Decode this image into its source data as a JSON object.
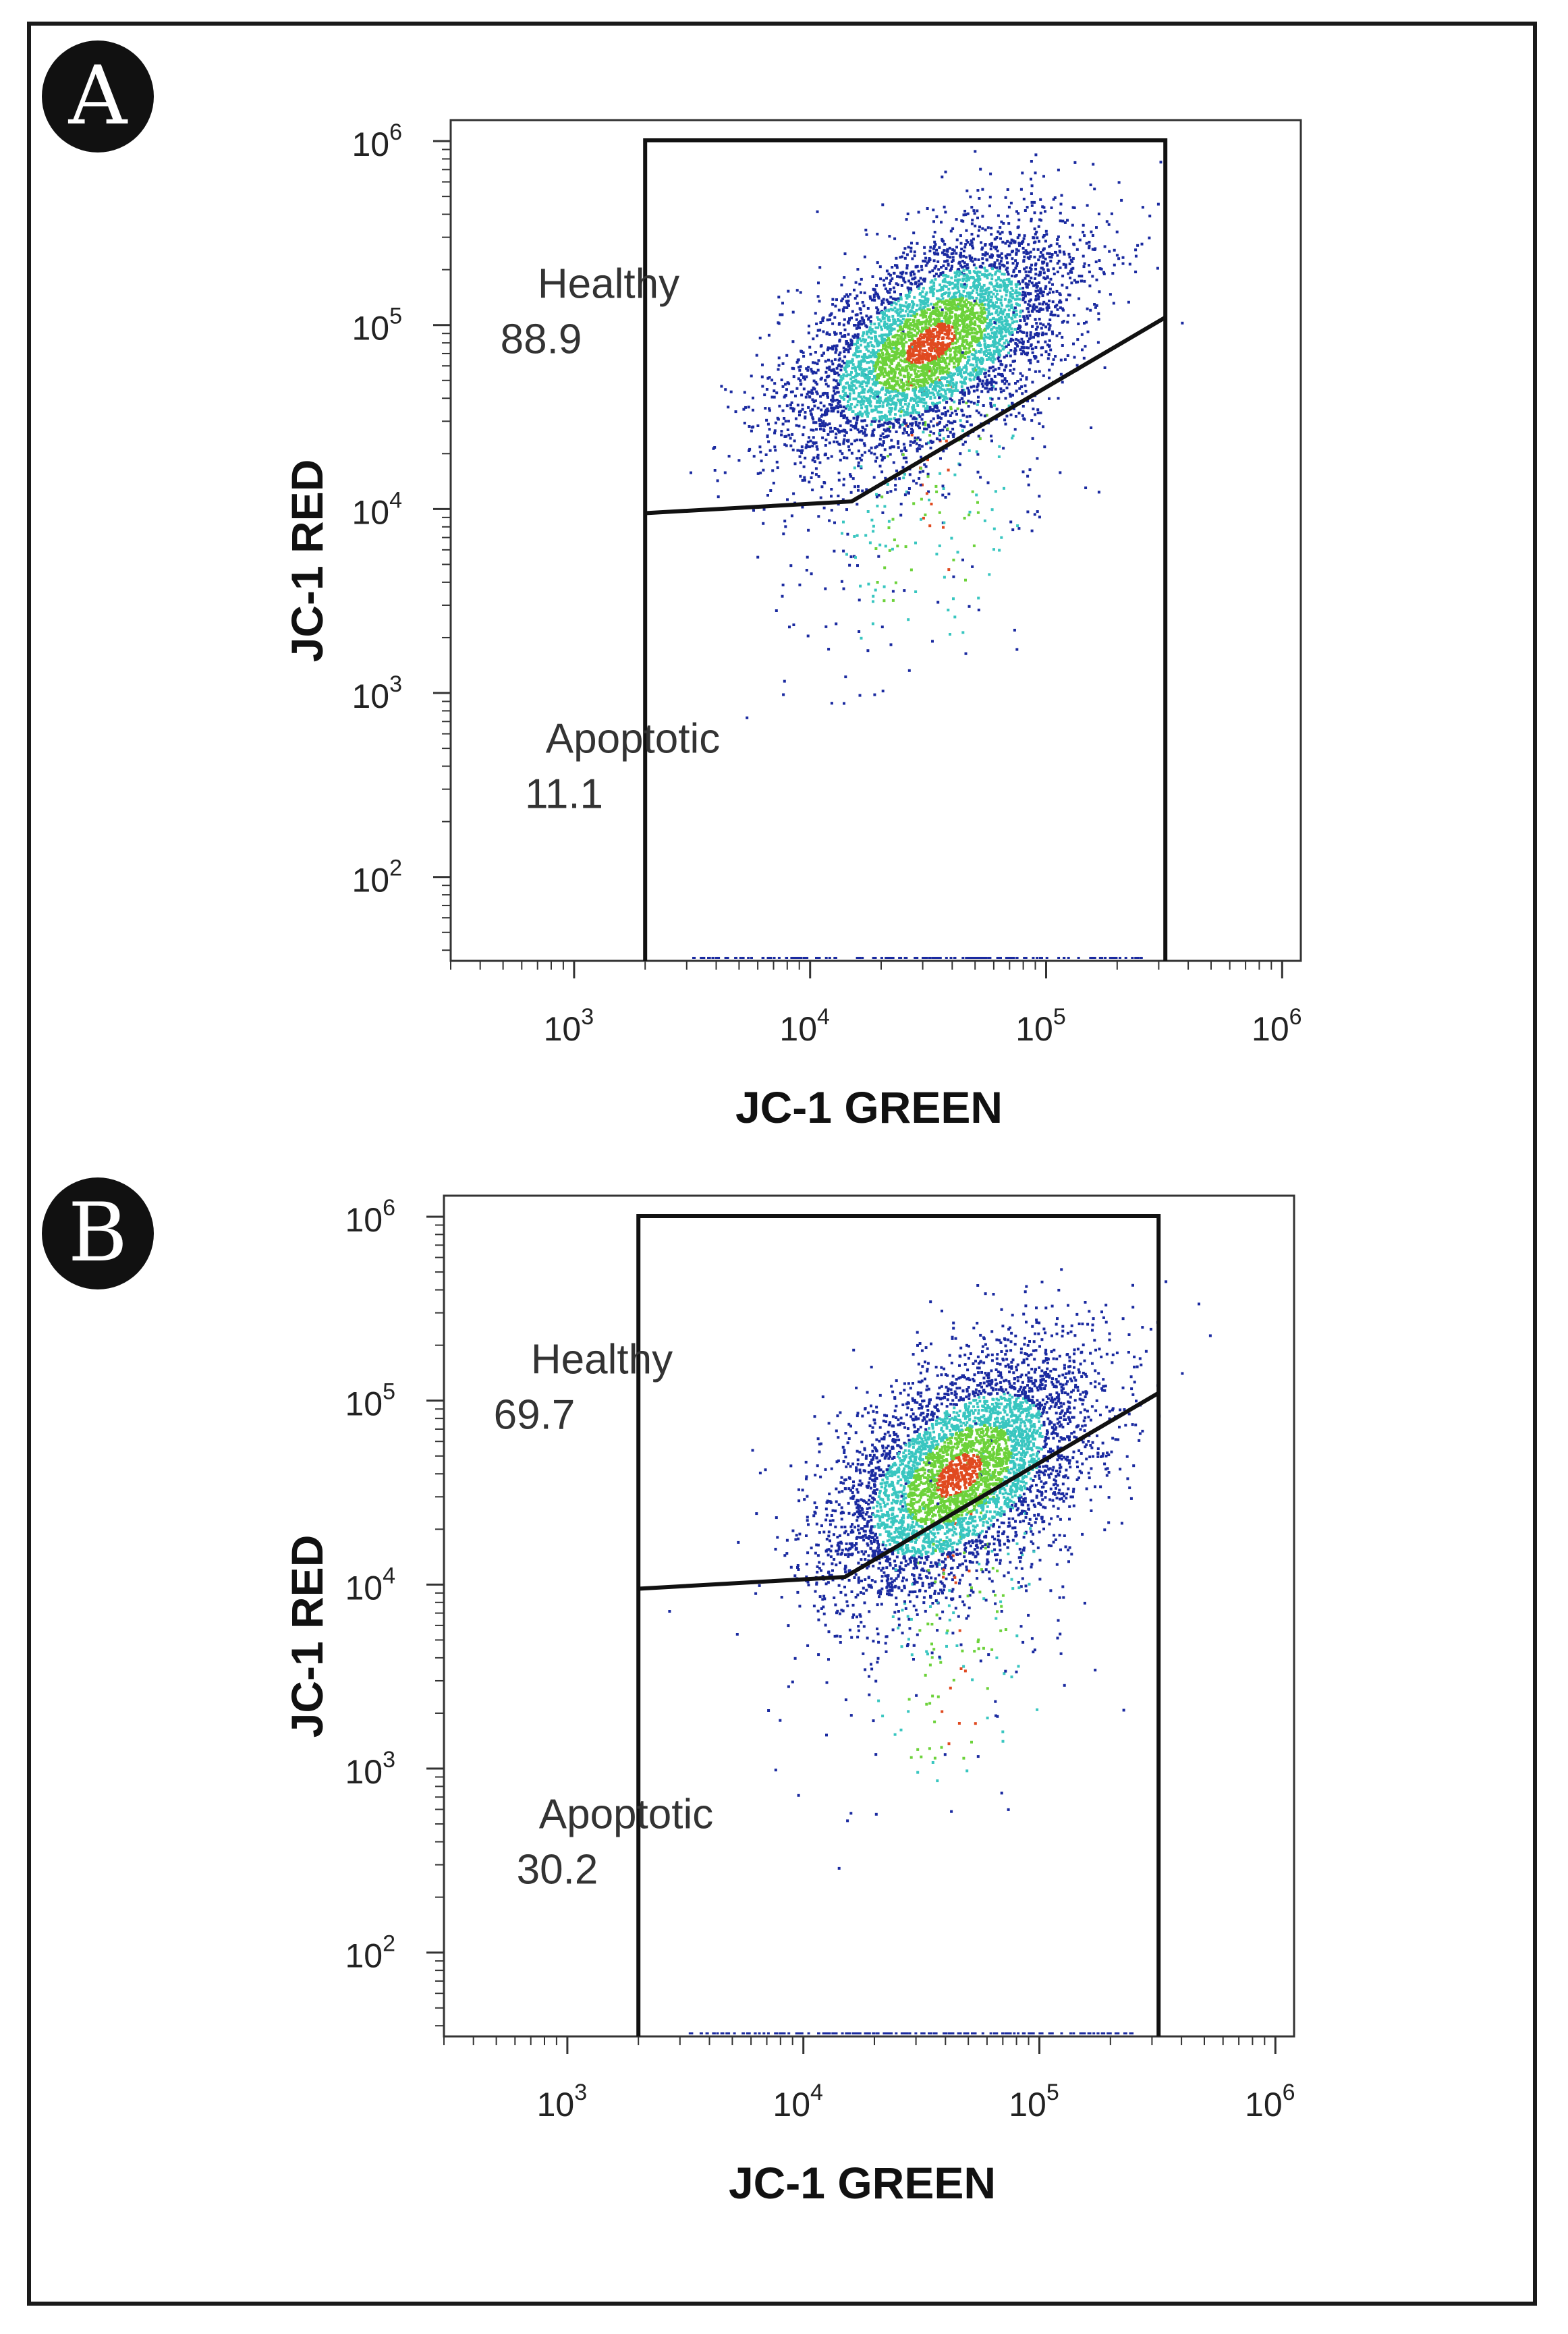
{
  "chart_data": [
    {
      "type": "scatter",
      "panel_label": "A",
      "title": "",
      "xlabel": "JC-1 GREEN",
      "ylabel": "JC-1 RED",
      "xscale": "log",
      "yscale": "log",
      "xlim": [
        300,
        1200000
      ],
      "ylim": [
        35,
        1300000
      ],
      "xticks": [
        {
          "base": "10",
          "exp": "3",
          "value": 1000
        },
        {
          "base": "10",
          "exp": "4",
          "value": 10000
        },
        {
          "base": "10",
          "exp": "5",
          "value": 100000
        },
        {
          "base": "10",
          "exp": "6",
          "value": 1000000
        }
      ],
      "yticks": [
        {
          "base": "10",
          "exp": "2",
          "value": 100
        },
        {
          "base": "10",
          "exp": "3",
          "value": 1000
        },
        {
          "base": "10",
          "exp": "4",
          "value": 10000
        },
        {
          "base": "10",
          "exp": "5",
          "value": 100000
        },
        {
          "base": "10",
          "exp": "6",
          "value": 1000000
        }
      ],
      "gate_x_range": [
        2000,
        320000
      ],
      "gate_divider": [
        [
          2000,
          9500
        ],
        [
          15000,
          11000
        ],
        [
          320000,
          110000
        ]
      ],
      "density_center": [
        32000,
        80000
      ],
      "regions": [
        {
          "name": "Healthy",
          "percent": "88.9"
        },
        {
          "name": "Apoptotic",
          "percent": "11.1"
        }
      ]
    },
    {
      "type": "scatter",
      "panel_label": "B",
      "title": "",
      "xlabel": "JC-1 GREEN",
      "ylabel": "JC-1 RED",
      "xscale": "log",
      "yscale": "log",
      "xlim": [
        300,
        1200000
      ],
      "ylim": [
        35,
        1300000
      ],
      "xticks": [
        {
          "base": "10",
          "exp": "3",
          "value": 1000
        },
        {
          "base": "10",
          "exp": "4",
          "value": 10000
        },
        {
          "base": "10",
          "exp": "5",
          "value": 100000
        },
        {
          "base": "10",
          "exp": "6",
          "value": 1000000
        }
      ],
      "yticks": [
        {
          "base": "10",
          "exp": "2",
          "value": 100
        },
        {
          "base": "10",
          "exp": "3",
          "value": 1000
        },
        {
          "base": "10",
          "exp": "4",
          "value": 10000
        },
        {
          "base": "10",
          "exp": "5",
          "value": 100000
        },
        {
          "base": "10",
          "exp": "6",
          "value": 1000000
        }
      ],
      "gate_x_range": [
        2000,
        320000
      ],
      "gate_divider": [
        [
          2000,
          9500
        ],
        [
          15000,
          11000
        ],
        [
          320000,
          110000
        ]
      ],
      "density_center": [
        45000,
        40000
      ],
      "regions": [
        {
          "name": "Healthy",
          "percent": "69.7"
        },
        {
          "name": "Apoptotic",
          "percent": "30.2"
        }
      ]
    }
  ],
  "colors": {
    "density_low": "#1a2aa0",
    "density_mid": "#39c6c0",
    "density_high": "#6cd23a",
    "density_peak": "#e04a20",
    "axis": "#333333",
    "gate": "#111111"
  }
}
